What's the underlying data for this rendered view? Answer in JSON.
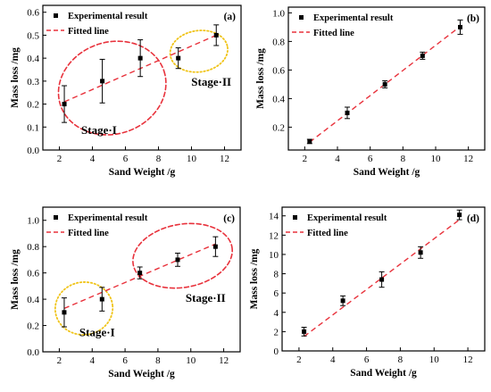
{
  "chart_data": [
    {
      "type": "scatter",
      "panel_label": "(a)",
      "xlabel": "Sand Weight /g",
      "ylabel": "Mass loss /mg",
      "xlim": [
        1,
        13
      ],
      "ylim": [
        0,
        0.63
      ],
      "xticks": [
        2,
        4,
        6,
        8,
        10,
        12
      ],
      "yticks": [
        0.0,
        0.1,
        0.2,
        0.3,
        0.4,
        0.5,
        0.6
      ],
      "ytick_labels": [
        "0.0",
        "0.1",
        "0.2",
        "0.3",
        "0.4",
        "0.5",
        "0.6"
      ],
      "legend": {
        "placement": "top-left",
        "entries": [
          "Experimental result",
          "Fitted line"
        ]
      },
      "series": [
        {
          "name": "Experimental result",
          "kind": "points",
          "x": [
            2.3,
            4.6,
            6.9,
            9.2,
            11.5
          ],
          "y": [
            0.2,
            0.3,
            0.4,
            0.4,
            0.5
          ],
          "err": [
            0.08,
            0.095,
            0.08,
            0.045,
            0.045
          ]
        },
        {
          "name": "Fitted line",
          "kind": "line",
          "x": [
            2.3,
            11.5
          ],
          "y": [
            0.21,
            0.5
          ]
        }
      ],
      "annotations": [
        {
          "text": "Stage·I",
          "x": 4.4,
          "y": 0.07,
          "ellipse": {
            "cx": 5.2,
            "cy": 0.27,
            "rx": 3.3,
            "ry": 0.2,
            "rotate": -18,
            "color": "#e8323c",
            "style": "dash"
          }
        },
        {
          "text": "Stage·II",
          "x": 11.2,
          "y": 0.28,
          "ellipse": {
            "cx": 10.45,
            "cy": 0.43,
            "rx": 1.75,
            "ry": 0.09,
            "rotate": -8,
            "color": "#f0c419",
            "style": "dot"
          }
        }
      ]
    },
    {
      "type": "scatter",
      "panel_label": "(b)",
      "xlabel": "Sand Weight /g",
      "ylabel": "Mass loss /mg",
      "xlim": [
        1,
        13
      ],
      "ylim": [
        0.04,
        1.04
      ],
      "xticks": [
        2,
        4,
        6,
        8,
        10,
        12
      ],
      "yticks": [
        0.2,
        0.4,
        0.6,
        0.8,
        1.0
      ],
      "ytick_labels": [
        "0.2",
        "0.4",
        "0.6",
        "0.8",
        "1.0"
      ],
      "legend": {
        "placement": "top-left",
        "entries": [
          "Experimental result",
          "Fitted line"
        ]
      },
      "series": [
        {
          "name": "Experimental result",
          "kind": "points",
          "x": [
            2.3,
            4.6,
            6.9,
            9.2,
            11.5
          ],
          "y": [
            0.1,
            0.3,
            0.5,
            0.7,
            0.9
          ],
          "err": [
            0.015,
            0.04,
            0.025,
            0.025,
            0.05
          ]
        },
        {
          "name": "Fitted line",
          "kind": "line",
          "x": [
            2.3,
            11.5
          ],
          "y": [
            0.095,
            0.905
          ]
        }
      ],
      "annotations": []
    },
    {
      "type": "scatter",
      "panel_label": "(c)",
      "xlabel": "Sand Weight /g",
      "ylabel": "Mass loss /mg",
      "xlim": [
        1,
        13
      ],
      "ylim": [
        0,
        1.1
      ],
      "xticks": [
        2,
        4,
        6,
        8,
        10,
        12
      ],
      "yticks": [
        0.0,
        0.2,
        0.4,
        0.6,
        0.8,
        1.0
      ],
      "ytick_labels": [
        "0.0",
        "0.2",
        "0.4",
        "0.6",
        "0.8",
        "1.0"
      ],
      "legend": {
        "placement": "top-left",
        "entries": [
          "Experimental result",
          "Fitted line"
        ]
      },
      "series": [
        {
          "name": "Experimental result",
          "kind": "points",
          "x": [
            2.3,
            4.6,
            6.9,
            9.2,
            11.5
          ],
          "y": [
            0.3,
            0.4,
            0.6,
            0.7,
            0.8
          ],
          "err": [
            0.11,
            0.09,
            0.045,
            0.05,
            0.075
          ]
        },
        {
          "name": "Fitted line",
          "kind": "line",
          "x": [
            2.3,
            11.5
          ],
          "y": [
            0.33,
            0.82
          ]
        }
      ],
      "annotations": [
        {
          "text": "Stage·I",
          "x": 4.3,
          "y": 0.12,
          "ellipse": {
            "cx": 3.5,
            "cy": 0.33,
            "rx": 1.75,
            "ry": 0.2,
            "rotate": -6,
            "color": "#f0c419",
            "style": "dot"
          }
        },
        {
          "text": "Stage·II",
          "x": 10.9,
          "y": 0.38,
          "ellipse": {
            "cx": 9.5,
            "cy": 0.73,
            "rx": 3.05,
            "ry": 0.24,
            "rotate": -10,
            "color": "#e8323c",
            "style": "dash"
          }
        }
      ]
    },
    {
      "type": "scatter",
      "panel_label": "(d)",
      "xlabel": "Sand Weight /g",
      "ylabel": "Mass loss /mg",
      "xlim": [
        1,
        13
      ],
      "ylim": [
        0,
        14.9
      ],
      "xticks": [
        2,
        4,
        6,
        8,
        10,
        12
      ],
      "yticks": [
        0,
        2,
        4,
        6,
        8,
        10,
        12,
        14
      ],
      "ytick_labels": [
        "0",
        "2",
        "4",
        "6",
        "8",
        "10",
        "12",
        "14"
      ],
      "legend": {
        "placement": "top-left",
        "entries": [
          "Experimental result",
          "Fitted line"
        ]
      },
      "series": [
        {
          "name": "Experimental result",
          "kind": "points",
          "x": [
            2.3,
            4.6,
            6.9,
            9.2,
            11.5
          ],
          "y": [
            2.0,
            5.2,
            7.4,
            10.2,
            14.1
          ],
          "err": [
            0.45,
            0.5,
            0.8,
            0.6,
            0.5
          ]
        },
        {
          "name": "Fitted line",
          "kind": "line",
          "x": [
            2.3,
            11.5
          ],
          "y": [
            1.5,
            13.6
          ]
        }
      ],
      "annotations": []
    }
  ],
  "colors": {
    "fit_line": "#e8323c",
    "marker": "#000000",
    "stage_red": "#e8323c",
    "stage_yellow": "#f0c419"
  }
}
